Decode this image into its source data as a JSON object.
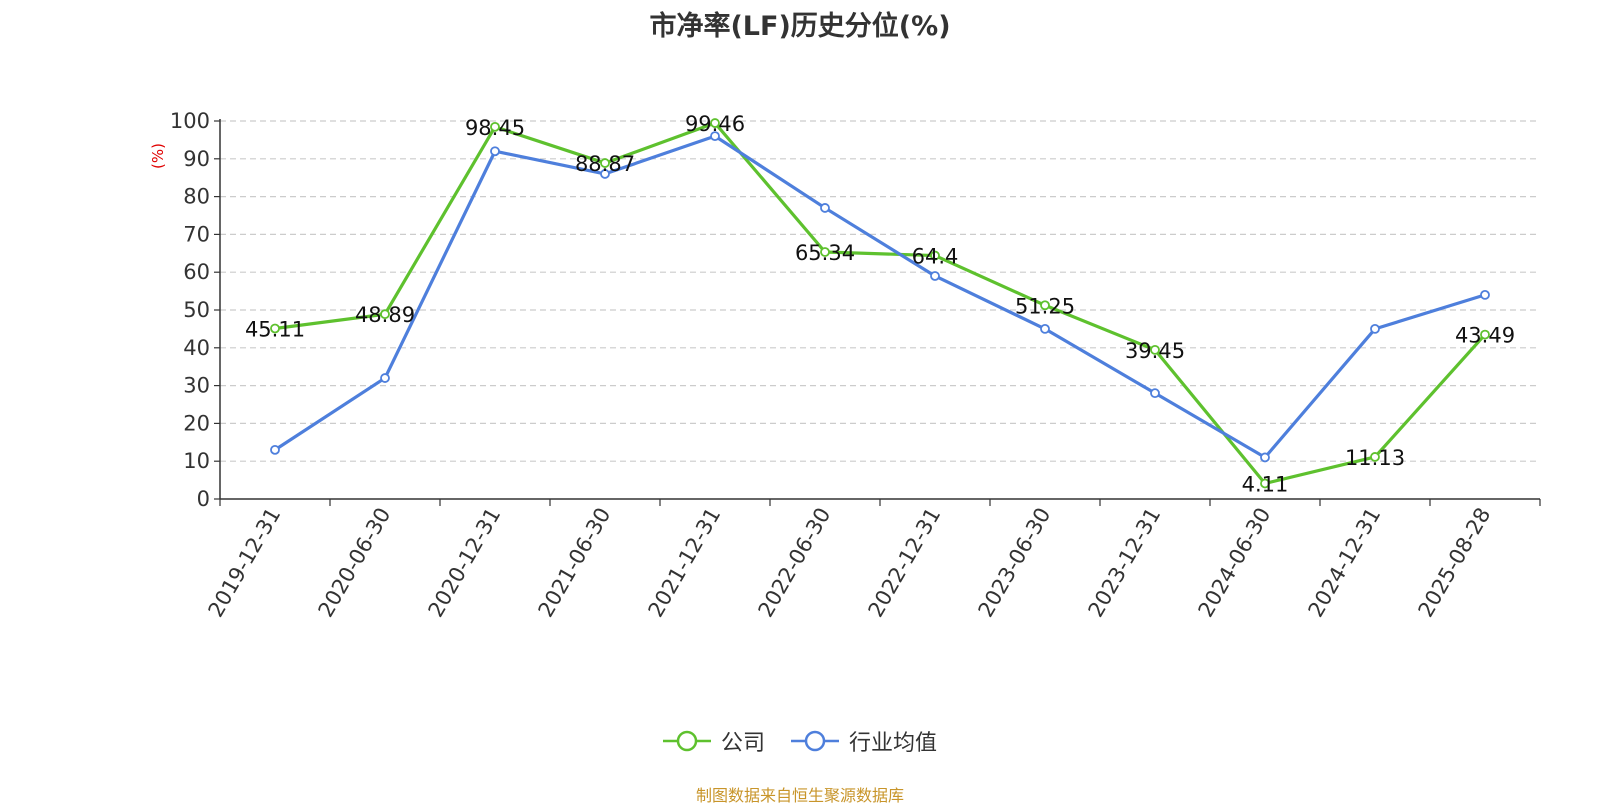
{
  "chart_data": {
    "type": "line",
    "title": "市净率(LF)历史分位(%)",
    "ylabel": "(%)",
    "xlabel": "",
    "ylim": [
      0,
      100
    ],
    "yticks": [
      0,
      10,
      20,
      30,
      40,
      50,
      60,
      70,
      80,
      90,
      100
    ],
    "categories": [
      "2019-12-31",
      "2020-06-30",
      "2020-12-31",
      "2021-06-30",
      "2021-12-31",
      "2022-06-30",
      "2022-12-31",
      "2023-06-30",
      "2023-12-31",
      "2024-06-30",
      "2024-12-31",
      "2025-08-28"
    ],
    "series": [
      {
        "name": "公司",
        "color": "#5ec12e",
        "values": [
          45.11,
          48.89,
          98.45,
          88.87,
          99.46,
          65.34,
          64.4,
          51.25,
          39.45,
          4.11,
          11.13,
          43.49
        ],
        "labels": [
          "45.11",
          "48.89",
          "98.45",
          "88.87",
          "99.46",
          "65.34",
          "64.4",
          "51.25",
          "39.45",
          "4.11",
          "11.13",
          "43.49"
        ]
      },
      {
        "name": "行业均值",
        "color": "#4e7fdc",
        "values": [
          13,
          32,
          92,
          86,
          96,
          77,
          59,
          45,
          28,
          11,
          45,
          54
        ]
      }
    ],
    "grid": true,
    "legend": "bottom-center",
    "ylabel_color": "#e00000"
  },
  "source_text": "制图数据来自恒生聚源数据库"
}
